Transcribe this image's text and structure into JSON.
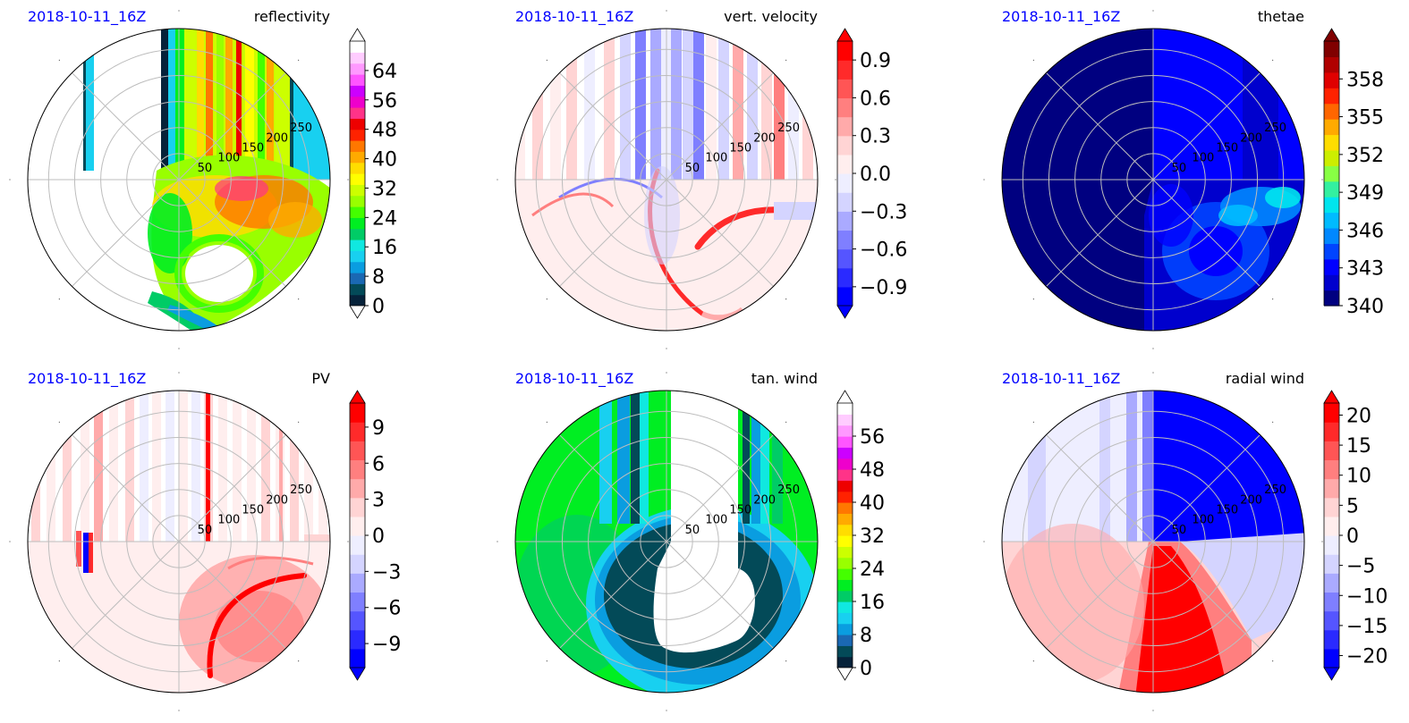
{
  "figure": {
    "datetime_color": "#0000ff",
    "grid_color": "#bdbdbd"
  },
  "chart_data": [
    {
      "type": "heatmap",
      "projection": "polar",
      "datetime": "2018-10-11_16Z",
      "title": "reflectivity",
      "radial_ticks": [
        50,
        100,
        150,
        200,
        250
      ],
      "rmax": 290,
      "colorbar": {
        "vmin": 0,
        "vmax": 72,
        "extend": "both",
        "ticks": [
          0,
          8,
          16,
          24,
          32,
          40,
          48,
          56,
          64
        ],
        "tick_labels": [
          "0",
          "8",
          "16",
          "24",
          "32",
          "40",
          "48",
          "56",
          "64"
        ],
        "colors": [
          "#06223a",
          "#034a58",
          "#1a68b3",
          "#0a9de0",
          "#18d0f0",
          "#10e8e0",
          "#00cc66",
          "#00ee22",
          "#44ff00",
          "#99ff00",
          "#ccff00",
          "#ffff00",
          "#ffdd00",
          "#ffaa00",
          "#ff7700",
          "#ff2200",
          "#ee0000",
          "#ff3388",
          "#ee00cc",
          "#cc00ff",
          "#ff55ff",
          "#ff99ff",
          "#ffccff",
          "#ffffff"
        ]
      },
      "fill": "refl"
    },
    {
      "type": "heatmap",
      "projection": "polar",
      "datetime": "2018-10-11_16Z",
      "title": "vert. velocity",
      "radial_ticks": [
        50,
        100,
        150,
        200,
        250
      ],
      "rmax": 290,
      "colorbar": {
        "vmin": -1.05,
        "vmax": 1.05,
        "extend": "both",
        "ticks": [
          -0.9,
          -0.6,
          -0.3,
          0.0,
          0.3,
          0.6,
          0.9
        ],
        "tick_labels": [
          "−0.9",
          "−0.6",
          "−0.3",
          "0.0",
          "0.3",
          "0.6",
          "0.9"
        ],
        "colors": [
          "#0000ff",
          "#2a2aff",
          "#5555ff",
          "#7f7fff",
          "#aaaaff",
          "#d4d4ff",
          "#eeeeff",
          "#ffeeee",
          "#ffd4d4",
          "#ffaaaa",
          "#ff7f7f",
          "#ff5555",
          "#ff2a2a",
          "#ff0000"
        ]
      },
      "fill": "vv"
    },
    {
      "type": "heatmap",
      "projection": "polar",
      "datetime": "2018-10-11_16Z",
      "title": "thetae",
      "radial_ticks": [
        50,
        100,
        150,
        200,
        250
      ],
      "rmax": 290,
      "colorbar": {
        "vmin": 340,
        "vmax": 361,
        "extend": "max",
        "ticks": [
          340,
          343,
          346,
          349,
          352,
          355,
          358
        ],
        "tick_labels": [
          "340",
          "343",
          "346",
          "349",
          "352",
          "355",
          "358"
        ],
        "colors": [
          "#000080",
          "#0000cd",
          "#0000ff",
          "#0044ff",
          "#0088ff",
          "#00bbff",
          "#00e5ee",
          "#33f0a0",
          "#88ff44",
          "#ccee00",
          "#ffdd00",
          "#ffaa00",
          "#ff6600",
          "#ff2200",
          "#e00000",
          "#b00000",
          "#800000"
        ]
      },
      "fill": "the"
    },
    {
      "type": "heatmap",
      "projection": "polar",
      "datetime": "2018-10-11_16Z",
      "title": "PV",
      "radial_ticks": [
        50,
        100,
        150,
        200,
        250
      ],
      "rmax": 290,
      "colorbar": {
        "vmin": -11,
        "vmax": 11,
        "extend": "both",
        "ticks": [
          -9,
          -6,
          -3,
          0,
          3,
          6,
          9
        ],
        "tick_labels": [
          "−9",
          "−6",
          "−3",
          "0",
          "3",
          "6",
          "9"
        ],
        "colors": [
          "#0000ff",
          "#2a2aff",
          "#5555ff",
          "#7f7fff",
          "#aaaaff",
          "#d4d4ff",
          "#eeeeff",
          "#ffeeee",
          "#ffd4d4",
          "#ffaaaa",
          "#ff7f7f",
          "#ff5555",
          "#ff2a2a",
          "#ff0000"
        ]
      },
      "fill": "pv"
    },
    {
      "type": "heatmap",
      "projection": "polar",
      "datetime": "2018-10-11_16Z",
      "title": "tan. wind",
      "radial_ticks": [
        50,
        100,
        150,
        200,
        250
      ],
      "rmax": 290,
      "colorbar": {
        "vmin": 0,
        "vmax": 64,
        "extend": "both",
        "ticks": [
          0,
          8,
          16,
          24,
          32,
          40,
          48,
          56
        ],
        "tick_labels": [
          "0",
          "8",
          "16",
          "24",
          "32",
          "40",
          "48",
          "56"
        ],
        "colors": [
          "#06223a",
          "#034a58",
          "#1a68b3",
          "#0a9de0",
          "#18d0f0",
          "#10e8e0",
          "#00cc66",
          "#00ee22",
          "#44ff00",
          "#99ff00",
          "#ccff00",
          "#ffff00",
          "#ffdd00",
          "#ffaa00",
          "#ff7700",
          "#ff2200",
          "#ee0000",
          "#ff3388",
          "#ee00cc",
          "#cc00ff",
          "#ff55ff",
          "#ff99ff",
          "#ffccff",
          "#ffffff"
        ]
      },
      "fill": "tan"
    },
    {
      "type": "heatmap",
      "projection": "polar",
      "datetime": "2018-10-11_16Z",
      "title": "radial wind",
      "radial_ticks": [
        50,
        100,
        150,
        200,
        250
      ],
      "rmax": 290,
      "colorbar": {
        "vmin": -22,
        "vmax": 22,
        "extend": "both",
        "ticks": [
          -20,
          -15,
          -10,
          -5,
          0,
          5,
          10,
          15,
          20
        ],
        "tick_labels": [
          "−20",
          "−15",
          "−10",
          "−5",
          "0",
          "5",
          "10",
          "15",
          "20"
        ],
        "colors": [
          "#0000ff",
          "#2a2aff",
          "#5555ff",
          "#7f7fff",
          "#aaaaff",
          "#d4d4ff",
          "#eeeeff",
          "#ffeeee",
          "#ffd4d4",
          "#ffaaaa",
          "#ff7f7f",
          "#ff5555",
          "#ff2a2a",
          "#ff0000"
        ]
      },
      "fill": "rad"
    }
  ]
}
